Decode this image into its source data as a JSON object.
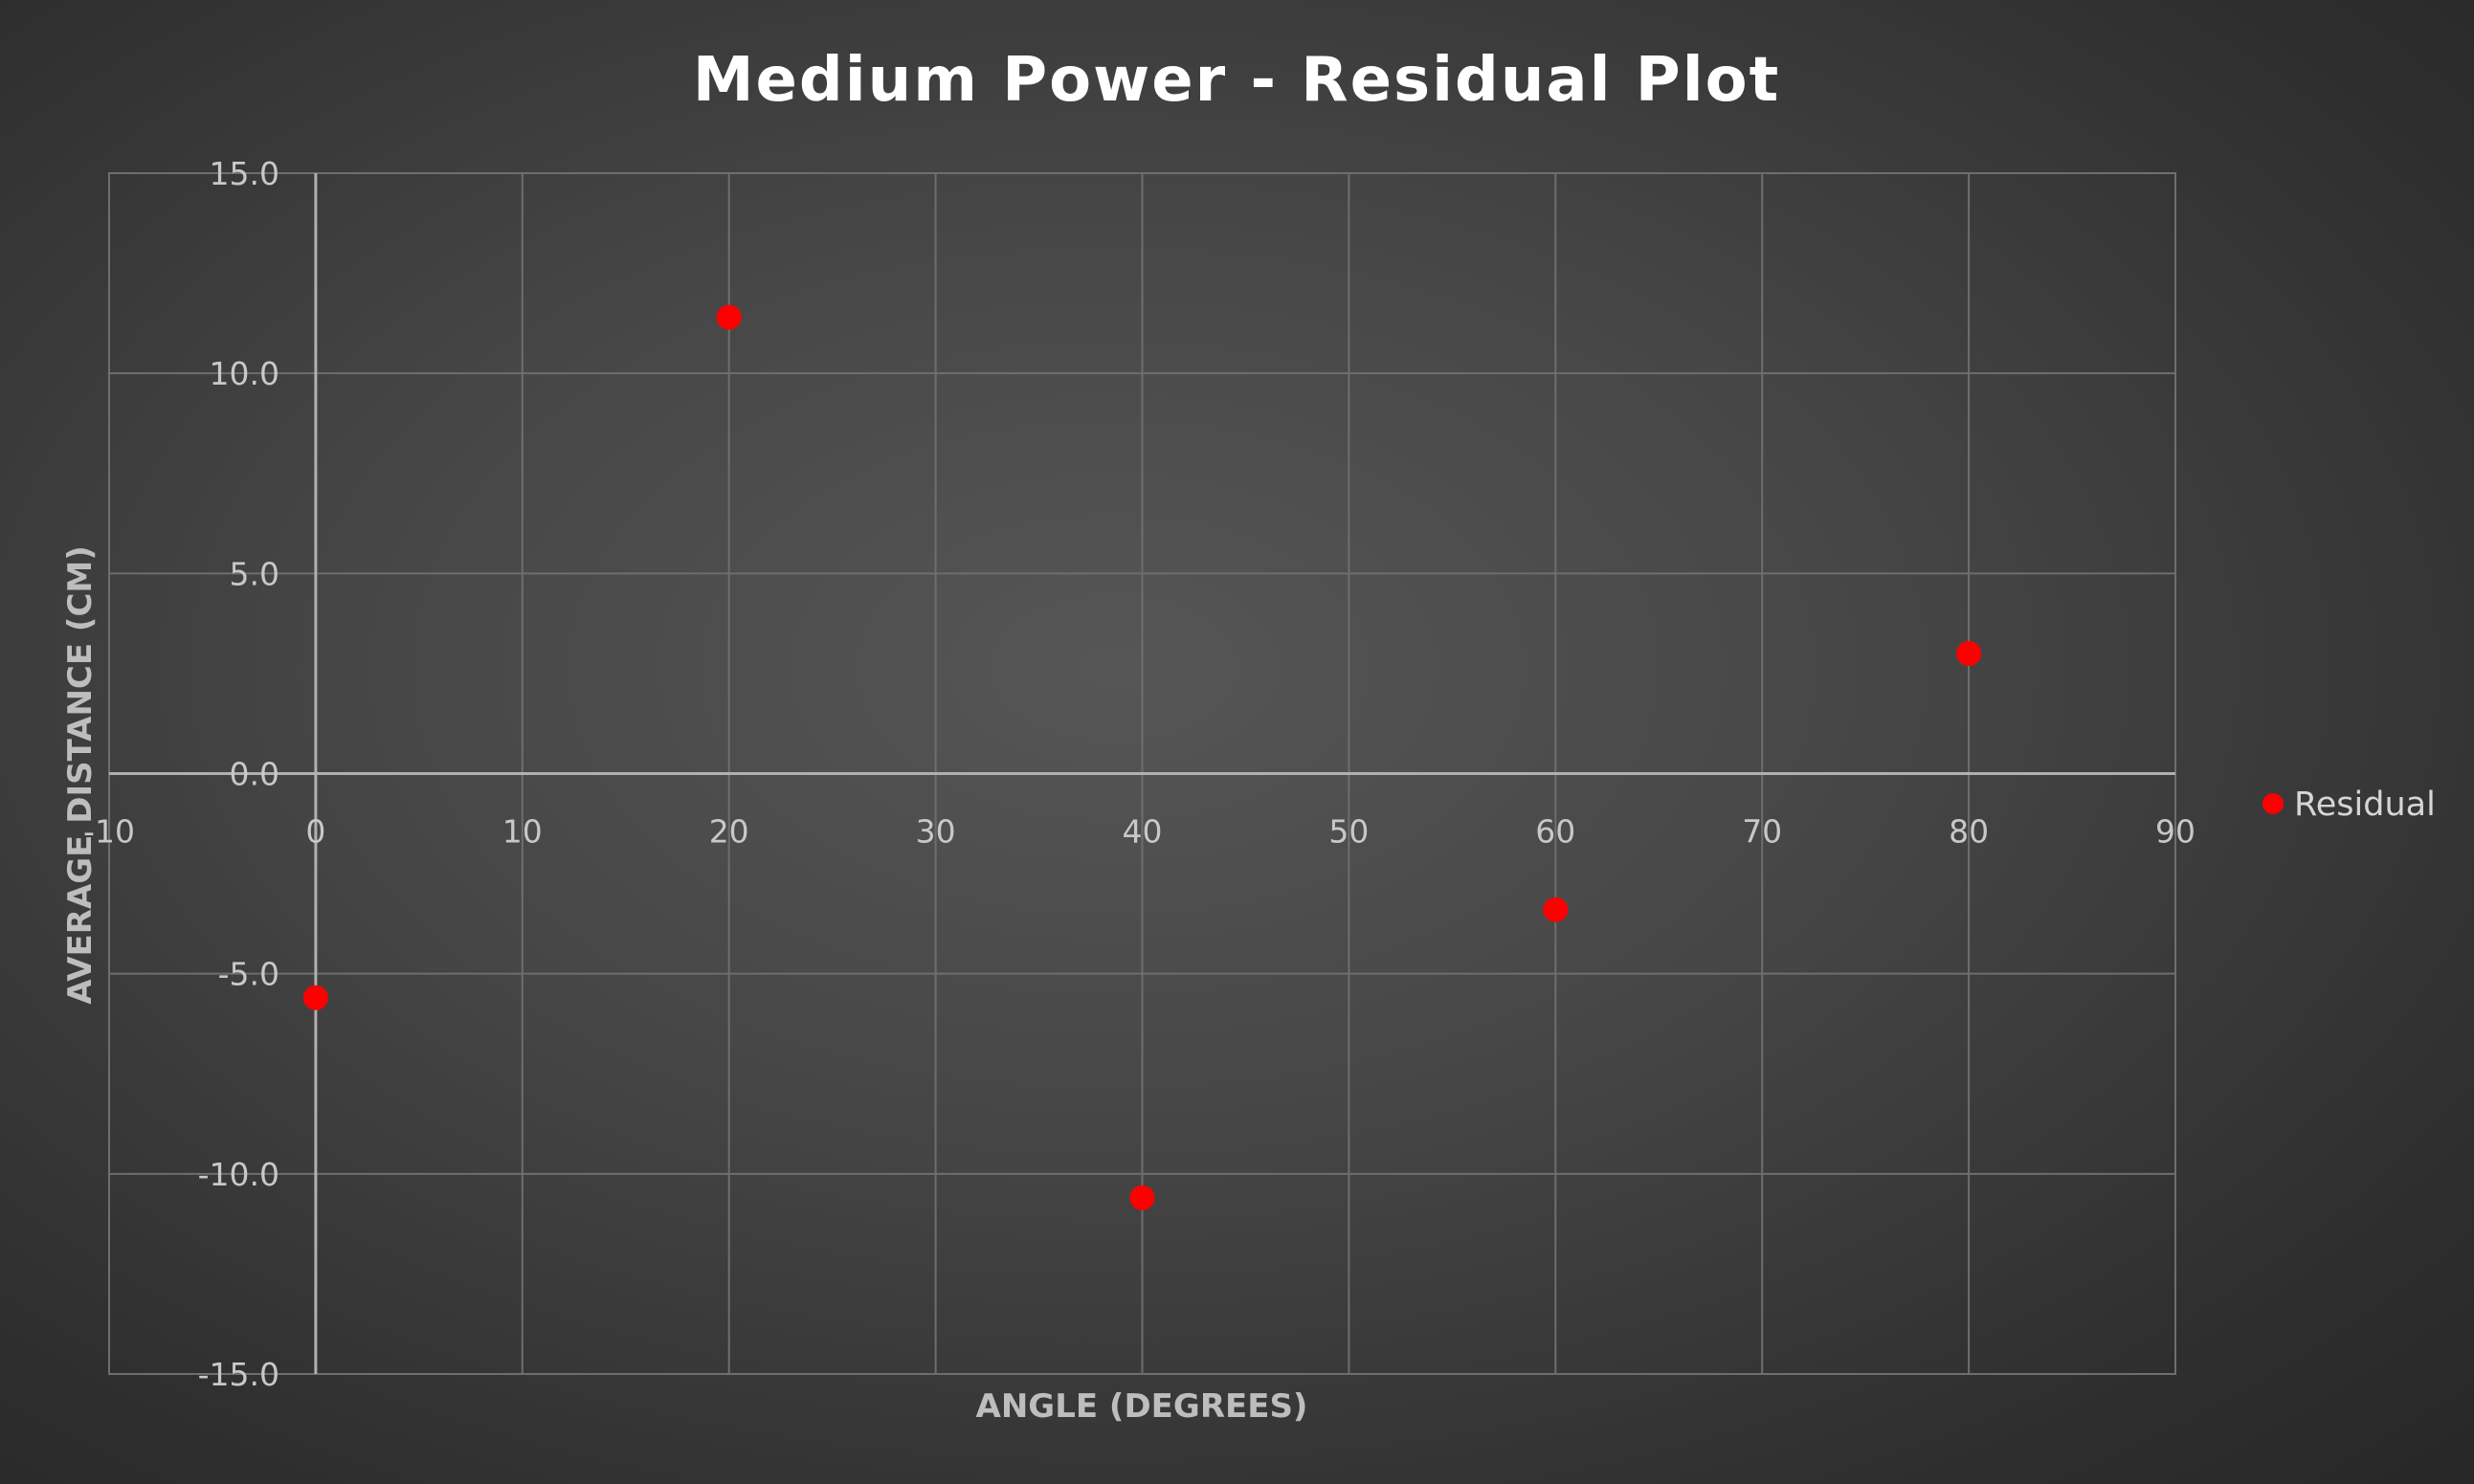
{
  "chart_data": {
    "type": "scatter",
    "title": "Medium Power - Residual Plot",
    "xlabel": "ANGLE (DEGREES)",
    "ylabel": "AVERAGE DISTANCE (CM)",
    "xlim": [
      -10,
      90
    ],
    "ylim": [
      -15,
      15
    ],
    "x_ticks": [
      -10,
      0,
      10,
      20,
      30,
      40,
      50,
      60,
      70,
      80,
      90
    ],
    "y_ticks": [
      15,
      10,
      5,
      0,
      -5,
      -10,
      -15
    ],
    "x_tick_labels": [
      "-10",
      "0",
      "10",
      "20",
      "30",
      "40",
      "50",
      "60",
      "70",
      "80",
      "90"
    ],
    "y_tick_labels": [
      "15.0",
      "10.0",
      "5.0",
      "0.0",
      "-5.0",
      "-10.0",
      "-15.0"
    ],
    "grid": true,
    "legend_position": "right",
    "series": [
      {
        "name": "Residual",
        "color": "#ff0000",
        "points": [
          {
            "x": 0,
            "y": -5.6
          },
          {
            "x": 20,
            "y": 11.4
          },
          {
            "x": 40,
            "y": -10.6
          },
          {
            "x": 60,
            "y": -3.4
          },
          {
            "x": 80,
            "y": 3.0
          }
        ]
      }
    ]
  }
}
